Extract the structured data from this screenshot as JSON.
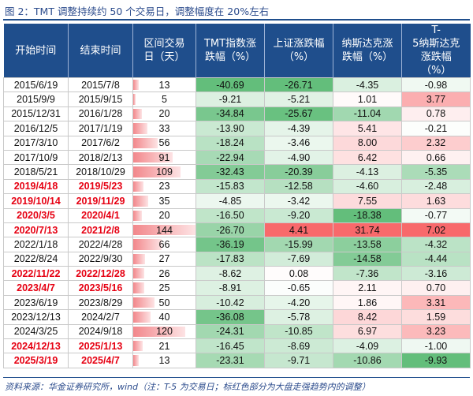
{
  "caption": "图 2：TMT 调整持续约 50 个交易日，调整幅度在 20%左右",
  "headers": [
    "开始时间",
    "结束时间",
    "区间交易日（天）",
    "TMT指数涨跌幅（%）",
    "上证涨跌幅（%）",
    "纳斯达克涨跌幅（%）",
    "T-5纳斯达克涨跌幅（%）"
  ],
  "header_lines": [
    [
      "开始时间"
    ],
    [
      "结束时间"
    ],
    [
      "区间交易",
      "日（天）"
    ],
    [
      "TMT指数涨",
      "跌幅（%）"
    ],
    [
      "上证涨跌幅",
      "（%）"
    ],
    [
      "纳斯达克涨",
      "跌幅（%）"
    ],
    [
      "T-",
      "5纳斯达克",
      "涨跌幅",
      "（%）"
    ]
  ],
  "rows": [
    {
      "start": "2015/6/19",
      "end": "2015/7/8",
      "days": 13,
      "tmt": "-40.69",
      "sh": "-26.71",
      "nas": "-4.35",
      "t5": "-0.98",
      "red": false
    },
    {
      "start": "2015/9/9",
      "end": "2015/9/15",
      "days": 5,
      "tmt": "-9.21",
      "sh": "-5.21",
      "nas": "1.01",
      "t5": "3.77",
      "red": false
    },
    {
      "start": "2015/12/31",
      "end": "2016/1/28",
      "days": 20,
      "tmt": "-34.84",
      "sh": "-25.67",
      "nas": "-11.04",
      "t5": "0.78",
      "red": false
    },
    {
      "start": "2016/12/5",
      "end": "2017/1/19",
      "days": 33,
      "tmt": "-13.90",
      "sh": "-4.39",
      "nas": "5.41",
      "t5": "-0.21",
      "red": false
    },
    {
      "start": "2017/3/10",
      "end": "2017/6/2",
      "days": 56,
      "tmt": "-18.24",
      "sh": "-3.46",
      "nas": "8.00",
      "t5": "2.32",
      "red": false
    },
    {
      "start": "2017/10/9",
      "end": "2018/2/13",
      "days": 91,
      "tmt": "-22.94",
      "sh": "-4.90",
      "nas": "6.42",
      "t5": "0.66",
      "red": false
    },
    {
      "start": "2018/5/21",
      "end": "2018/10/29",
      "days": 109,
      "tmt": "-32.43",
      "sh": "-20.39",
      "nas": "-4.13",
      "t5": "-5.35",
      "red": false
    },
    {
      "start": "2019/4/18",
      "end": "2019/5/23",
      "days": 23,
      "tmt": "-15.83",
      "sh": "-12.58",
      "nas": "-4.60",
      "t5": "-2.48",
      "red": true
    },
    {
      "start": "2019/10/14",
      "end": "2019/11/29",
      "days": 35,
      "tmt": "-4.85",
      "sh": "-3.42",
      "nas": "7.55",
      "t5": "1.63",
      "red": true
    },
    {
      "start": "2020/3/5",
      "end": "2020/4/1",
      "days": 20,
      "tmt": "-16.50",
      "sh": "-9.20",
      "nas": "-18.38",
      "t5": "-0.77",
      "red": true
    },
    {
      "start": "2020/7/13",
      "end": "2021/2/8",
      "days": 144,
      "tmt": "-26.70",
      "sh": "4.41",
      "nas": "31.74",
      "t5": "7.02",
      "red": true
    },
    {
      "start": "2022/1/18",
      "end": "2022/4/28",
      "days": 66,
      "tmt": "-36.19",
      "sh": "-15.99",
      "nas": "-13.58",
      "t5": "-4.32",
      "red": false
    },
    {
      "start": "2022/8/24",
      "end": "2022/9/30",
      "days": 27,
      "tmt": "-17.83",
      "sh": "-7.69",
      "nas": "-14.58",
      "t5": "-4.44",
      "red": false
    },
    {
      "start": "2022/11/22",
      "end": "2022/12/28",
      "days": 26,
      "tmt": "-8.62",
      "sh": "0.08",
      "nas": "-7.36",
      "t5": "-3.16",
      "red": true
    },
    {
      "start": "2023/4/7",
      "end": "2023/5/16",
      "days": 25,
      "tmt": "-8.91",
      "sh": "-0.65",
      "nas": "2.11",
      "t5": "0.70",
      "red": true
    },
    {
      "start": "2023/6/19",
      "end": "2023/8/29",
      "days": 50,
      "tmt": "-10.42",
      "sh": "-4.20",
      "nas": "1.86",
      "t5": "3.31",
      "red": false
    },
    {
      "start": "2023/12/13",
      "end": "2024/2/7",
      "days": 40,
      "tmt": "-36.08",
      "sh": "-5.78",
      "nas": "8.42",
      "t5": "1.59",
      "red": false
    },
    {
      "start": "2024/3/25",
      "end": "2024/9/18",
      "days": 120,
      "tmt": "-24.31",
      "sh": "-10.85",
      "nas": "6.97",
      "t5": "3.23",
      "red": false
    },
    {
      "start": "2024/12/13",
      "end": "2025/1/13",
      "days": 21,
      "tmt": "-16.45",
      "sh": "-8.69",
      "nas": "-4.09",
      "t5": "-1.00",
      "red": true
    },
    {
      "start": "2025/3/19",
      "end": "2025/4/7",
      "days": 13,
      "tmt": "-23.31",
      "sh": "-9.71",
      "nas": "-10.86",
      "t5": "-9.93",
      "red": true
    }
  ],
  "colors": {
    "header_bg": "#1f4e8c",
    "highlight_text": "#e60012",
    "pos_fill": "#f8696b",
    "neg_fill": "#63be7b",
    "bar_fill": "#f2878b"
  },
  "source": "资料来源：华金证券研究所，wind（注：T-5 为交易日；标红色部分为大盘走强趋势内的调整）"
}
